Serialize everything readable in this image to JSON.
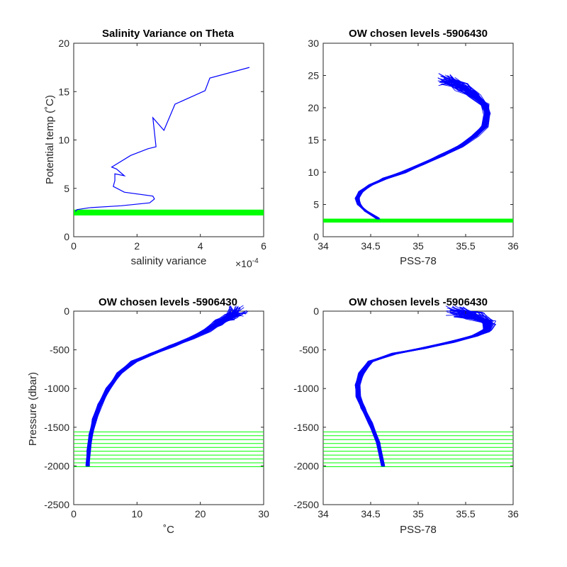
{
  "colors": {
    "profile": "#0000ff",
    "levels": "#00ff00",
    "axes": "#262626",
    "background": "#ffffff"
  },
  "chart_data": [
    {
      "type": "line",
      "title": "Salinity Variance on Theta",
      "xlabel": "salinity variance",
      "ylabel": "Potential temp (˚C)",
      "x_exponent_label": "×10",
      "x_exponent": "-4",
      "x_scale": 0.0001,
      "xlim": [
        0,
        6
      ],
      "ylim": [
        0,
        20
      ],
      "xticks": [
        0,
        2,
        4,
        6
      ],
      "yticks": [
        0,
        5,
        10,
        15,
        20
      ],
      "series": [
        {
          "role": "variance-profile",
          "color": "#0000ff",
          "x": [
            5.55,
            4.3,
            4.15,
            3.2,
            2.85,
            2.5,
            2.6,
            2.35,
            1.8,
            1.2,
            1.35,
            1.6,
            1.3,
            1.3,
            1.25,
            1.6,
            2.5,
            2.55,
            2.4,
            1.5,
            0.5,
            0.1,
            0.05
          ],
          "y": [
            17.5,
            16.4,
            15.1,
            13.7,
            11.0,
            12.3,
            9.3,
            9.1,
            8.4,
            7.2,
            7.0,
            6.3,
            6.5,
            5.8,
            5.2,
            4.6,
            4.2,
            3.9,
            3.5,
            3.2,
            3.0,
            2.8,
            2.6
          ]
        }
      ],
      "levels": {
        "role": "chosen-theta-levels",
        "color": "#00ff00",
        "y_range": [
          2.2,
          2.8
        ]
      }
    },
    {
      "type": "line",
      "title": "OW chosen levels -5906430",
      "xlabel": "PSS-78",
      "ylabel": "",
      "xlim": [
        34,
        36
      ],
      "ylim": [
        0,
        30
      ],
      "xticks": [
        34,
        34.5,
        35,
        35.5,
        36
      ],
      "yticks": [
        0,
        5,
        10,
        15,
        20,
        25,
        30
      ],
      "profile": {
        "color": "#0000ff",
        "x": [
          34.58,
          34.45,
          34.38,
          34.36,
          34.4,
          34.5,
          34.65,
          34.85,
          35.05,
          35.25,
          35.45,
          35.6,
          35.7,
          35.73,
          35.7,
          35.6,
          35.45,
          35.3
        ],
        "y": [
          2.8,
          4.0,
          5.0,
          6.0,
          7.0,
          8.0,
          9.0,
          10.0,
          11.3,
          12.6,
          14.0,
          15.6,
          17.1,
          19.0,
          20.5,
          22.0,
          23.3,
          24.4
        ]
      },
      "levels": {
        "role": "chosen-theta-levels",
        "color": "#00ff00",
        "y_range": [
          2.2,
          2.8
        ]
      }
    },
    {
      "type": "line",
      "title": "OW chosen levels -5906430",
      "xlabel": "˚C",
      "ylabel": "Pressure (dbar)",
      "xlim": [
        0,
        30
      ],
      "ylim": [
        -2500,
        0
      ],
      "xticks": [
        0,
        10,
        20,
        30
      ],
      "yticks": [
        0,
        -500,
        -1000,
        -1500,
        -2000,
        -2500
      ],
      "profile": {
        "color": "#0000ff",
        "x": [
          2.2,
          2.4,
          2.7,
          3.3,
          4.2,
          5.5,
          7.2,
          9.5,
          12.5,
          15.5,
          18.5,
          21.0,
          23.0,
          25.0,
          26.0
        ],
        "y": [
          -2000,
          -1800,
          -1600,
          -1400,
          -1200,
          -1000,
          -800,
          -650,
          -550,
          -450,
          -350,
          -250,
          -150,
          -60,
          0
        ]
      },
      "levels": {
        "role": "chosen-pressure-levels",
        "color": "#00ff00",
        "values": [
          -1560,
          -1610,
          -1660,
          -1710,
          -1760,
          -1810,
          -1860,
          -1910,
          -1960,
          -2010
        ]
      }
    },
    {
      "type": "line",
      "title": "OW chosen levels -5906430",
      "xlabel": "PSS-78",
      "ylabel": "",
      "xlim": [
        34,
        36
      ],
      "ylim": [
        -2500,
        0
      ],
      "xticks": [
        34,
        34.5,
        35,
        35.5,
        36
      ],
      "yticks": [
        0,
        -500,
        -1000,
        -1500,
        -2000,
        -2500
      ],
      "profile": {
        "color": "#0000ff",
        "x": [
          34.63,
          34.58,
          34.5,
          34.42,
          34.37,
          34.36,
          34.4,
          34.5,
          34.75,
          35.05,
          35.35,
          35.6,
          35.72,
          35.75,
          35.6,
          35.4
        ],
        "y": [
          -2000,
          -1700,
          -1450,
          -1250,
          -1100,
          -950,
          -800,
          -650,
          -550,
          -480,
          -400,
          -320,
          -250,
          -150,
          -60,
          0
        ]
      },
      "levels": {
        "role": "chosen-pressure-levels",
        "color": "#00ff00",
        "values": [
          -1560,
          -1610,
          -1660,
          -1710,
          -1760,
          -1810,
          -1860,
          -1910,
          -1960,
          -2010
        ]
      }
    }
  ]
}
